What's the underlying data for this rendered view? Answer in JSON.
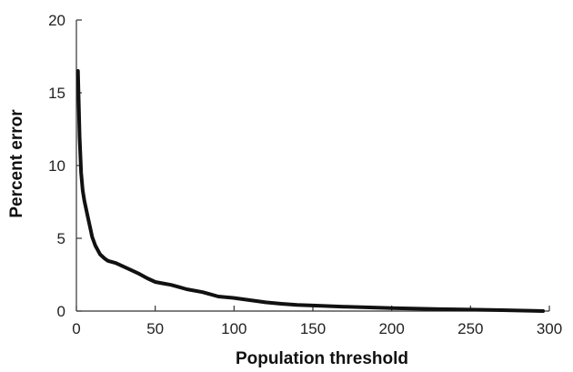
{
  "chart_data": {
    "type": "line",
    "title": "",
    "xlabel": "Population threshold",
    "ylabel": "Percent error",
    "xlim": [
      0,
      300
    ],
    "ylim": [
      0,
      20
    ],
    "xticks": [
      0,
      50,
      100,
      150,
      200,
      250,
      300
    ],
    "yticks": [
      0,
      5,
      10,
      15,
      20
    ],
    "grid": false,
    "legend": "none",
    "line_color": "#111111",
    "series": [
      {
        "x": [
          1,
          2,
          3,
          4,
          5,
          7,
          9,
          10,
          12,
          15,
          18,
          20,
          25,
          30,
          35,
          40,
          45,
          50,
          55,
          60,
          65,
          70,
          80,
          85,
          90,
          100,
          110,
          120,
          130,
          140,
          150,
          170,
          200,
          230,
          250,
          270,
          290,
          296
        ],
        "y": [
          16.5,
          12.0,
          9.5,
          8.3,
          7.6,
          6.6,
          5.6,
          5.1,
          4.5,
          3.9,
          3.6,
          3.45,
          3.3,
          3.05,
          2.8,
          2.55,
          2.25,
          2.0,
          1.9,
          1.8,
          1.65,
          1.5,
          1.3,
          1.15,
          1.0,
          0.9,
          0.75,
          0.6,
          0.5,
          0.42,
          0.38,
          0.3,
          0.2,
          0.13,
          0.1,
          0.06,
          0.02,
          0.0
        ]
      }
    ]
  }
}
